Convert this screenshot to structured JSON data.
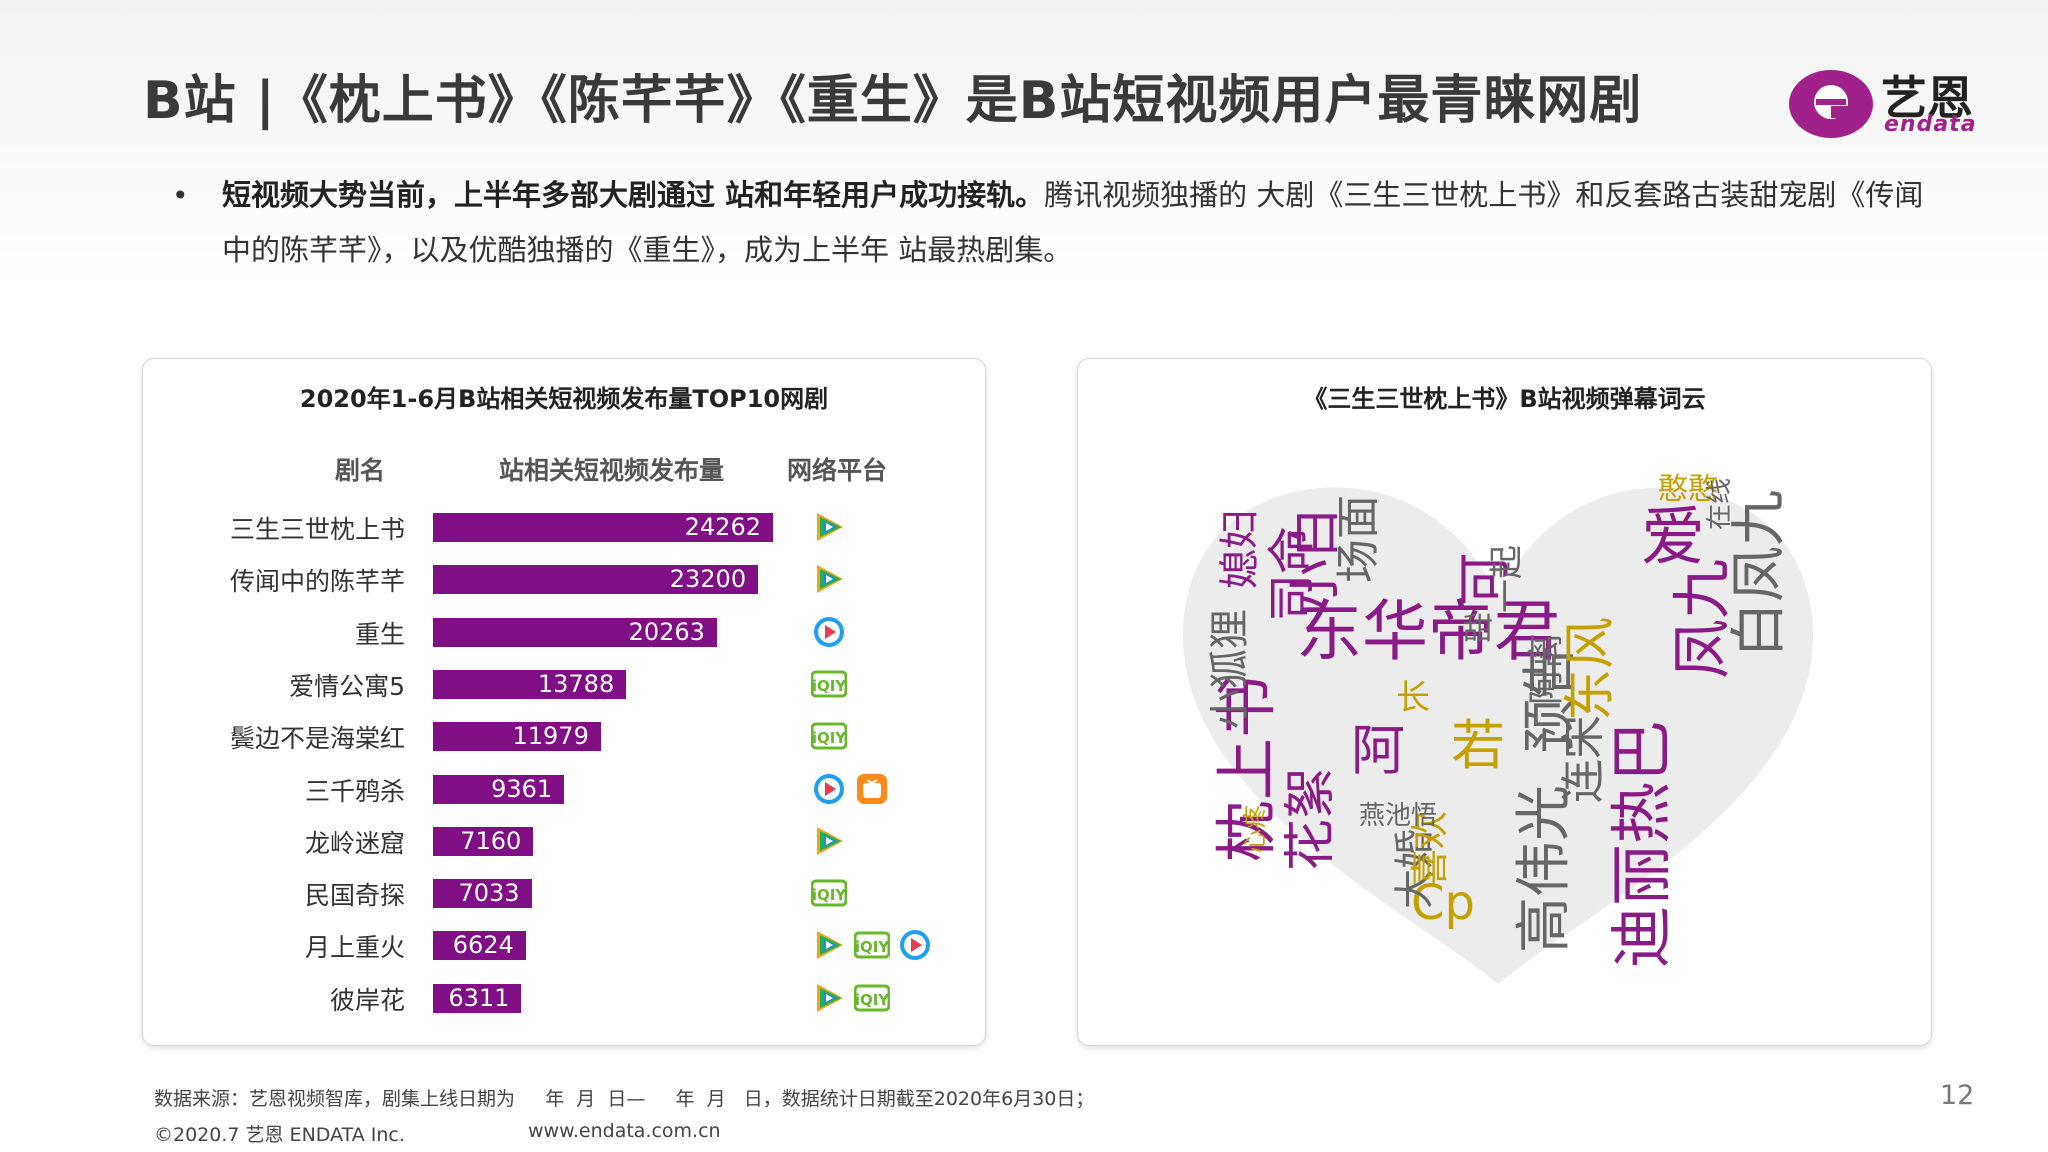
{
  "header": {
    "title": "B站 |《枕上书》《陈芊芊》《重生》是B站短视频用户最青睐网剧",
    "logo_cn": "艺恩",
    "logo_en": "endata"
  },
  "bullet": {
    "dot": "•",
    "bold": "短视频大势当前，上半年多部大剧通过  站和年轻用户成功接轨。",
    "normal": "腾讯视频独播的   大剧《三生三世枕上书》和反套路古装甜宠剧《传闻中的陈芊芊》，以及优酷独播的《重生》，成为上半年  站最热剧集。"
  },
  "chart_data": {
    "type": "bar",
    "title": "2020年1-6月B站相关短视频发布量TOP10网剧",
    "column_headers": [
      "剧名",
      "站相关短视频发布量",
      "网络平台"
    ],
    "categories": [
      "三生三世枕上书",
      "传闻中的陈芊芊",
      "重生",
      "爱情公寓5",
      "鬓边不是海棠红",
      "三千鸦杀",
      "龙岭迷窟",
      "民国奇探",
      "月上重火",
      "彼岸花"
    ],
    "values": [
      24262,
      23200,
      20263,
      13788,
      11979,
      9361,
      7160,
      7033,
      6624,
      6311
    ],
    "platforms": [
      [
        "tencent"
      ],
      [
        "tencent"
      ],
      [
        "youku"
      ],
      [
        "iqiyi"
      ],
      [
        "iqiyi"
      ],
      [
        "youku",
        "mango"
      ],
      [
        "tencent"
      ],
      [
        "iqiyi"
      ],
      [
        "tencent",
        "iqiyi",
        "youku"
      ],
      [
        "tencent",
        "iqiyi"
      ]
    ],
    "bar_color": "#800e84",
    "xlim": [
      0,
      24262
    ]
  },
  "wordcloud": {
    "title": "《三生三世枕上书》B站视频弹幕词云",
    "words": [
      {
        "t": "枕上书",
        "c": "#8a1a86"
      },
      {
        "t": "东华帝君",
        "c": "#8a1a86"
      },
      {
        "t": "小白",
        "c": "#8a1a86"
      },
      {
        "t": "凤九",
        "c": "#8a1a86"
      },
      {
        "t": "迪丽热巴",
        "c": "#8a1a86"
      },
      {
        "t": "高伟光",
        "c": "#666666"
      },
      {
        "t": "预告",
        "c": "#666666"
      },
      {
        "t": "花絮",
        "c": "#8a1a86"
      },
      {
        "t": "白凤九",
        "c": "#666666"
      },
      {
        "t": "爱",
        "c": "#8a1a86"
      },
      {
        "t": "司命",
        "c": "#8a1a86"
      },
      {
        "t": "东风",
        "c": "#c6a000"
      },
      {
        "t": "阿离",
        "c": "#666666"
      },
      {
        "t": "阿",
        "c": "#8a1a86"
      },
      {
        "t": "若",
        "c": "#c6a000"
      },
      {
        "t": "长",
        "c": "#c6a000"
      },
      {
        "t": "连宋",
        "c": "#666666"
      },
      {
        "t": "小狐狸",
        "c": "#666666"
      },
      {
        "t": "Cp",
        "c": "#c6a000"
      },
      {
        "t": "大婚",
        "c": "#666666"
      },
      {
        "t": "喜欢",
        "c": "#c6a000"
      },
      {
        "t": "场面",
        "c": "#666666"
      },
      {
        "t": "可",
        "c": "#8a1a86"
      },
      {
        "t": "一起",
        "c": "#666666"
      },
      {
        "t": "燕池悟",
        "c": "#666666"
      },
      {
        "t": "媳妇",
        "c": "#8a1a86"
      },
      {
        "t": "憨憨",
        "c": "#c6a000"
      },
      {
        "t": "在线",
        "c": "#666666"
      },
      {
        "t": "心疼",
        "c": "#c6a000"
      },
      {
        "t": "甜",
        "c": "#666666"
      }
    ]
  },
  "footer": {
    "source": "数据来源：艺恩视频智库，剧集上线日期为     年  月  日—     年  月   日，数据统计日期截至2020年6月30日；",
    "copyright": "©2020.7 艺恩 ENDATA Inc.",
    "url": "www.endata.com.cn",
    "page": "12"
  }
}
